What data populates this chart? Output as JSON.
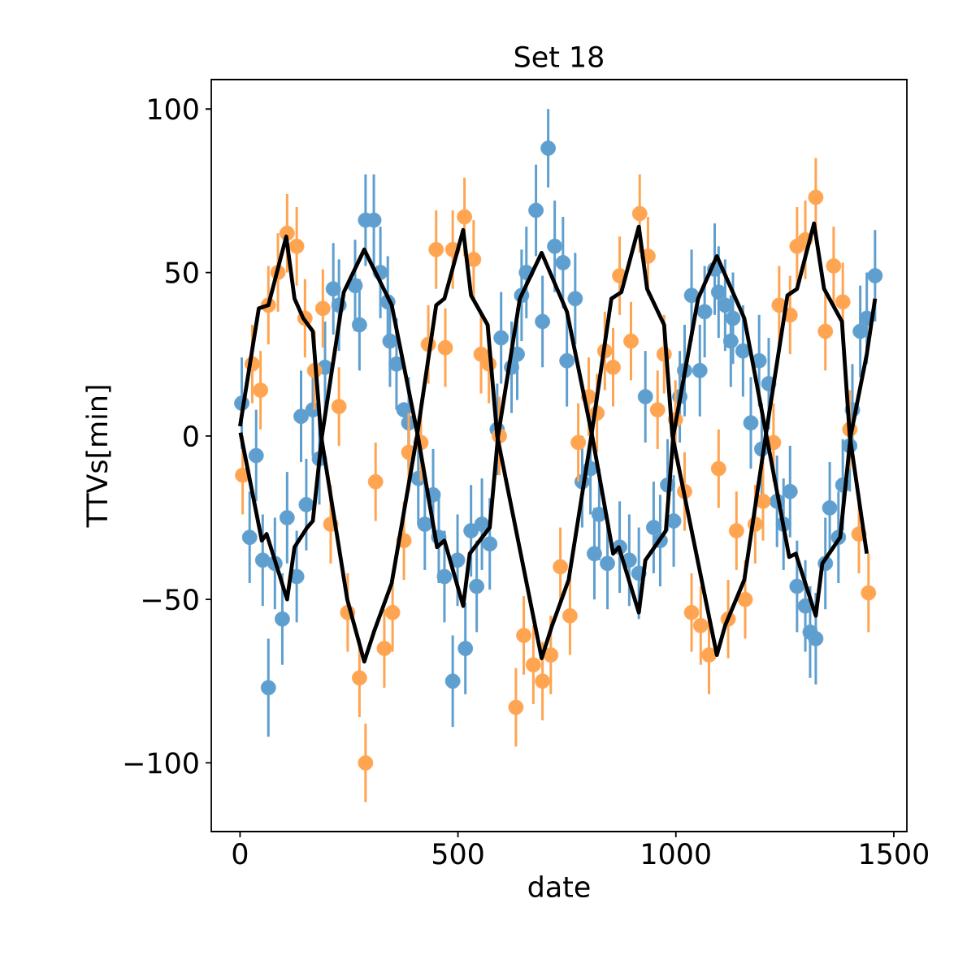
{
  "chart_data": {
    "type": "scatter",
    "title": "Set 18",
    "xlabel": "date",
    "ylabel": "TTVs[min]",
    "xlim": [
      -66,
      1530
    ],
    "ylim": [
      -121,
      109
    ],
    "xticks": [
      0,
      500,
      1000,
      1500
    ],
    "yticks": [
      {
        "value": -100,
        "label": "−100"
      },
      {
        "value": -50,
        "label": "−50"
      },
      0,
      50,
      100
    ],
    "marker": "circle",
    "series": [
      {
        "color": "#5f9fcf",
        "x": [
          4,
          22,
          37,
          52,
          65,
          80,
          97,
          108,
          130,
          140,
          152,
          167,
          182,
          195,
          214,
          227,
          264,
          274,
          288,
          307,
          322,
          339,
          344,
          359,
          376,
          387,
          409,
          424,
          443,
          456,
          469,
          488,
          499,
          517,
          530,
          543,
          555,
          573,
          590,
          599,
          623,
          636,
          646,
          657,
          679,
          694,
          707,
          722,
          741,
          750,
          769,
          785,
          804,
          813,
          824,
          843,
          871,
          893,
          915,
          930,
          949,
          964,
          981,
          995,
          1009,
          1020,
          1036,
          1055,
          1066,
          1089,
          1098,
          1113,
          1126,
          1131,
          1154,
          1172,
          1191,
          1197,
          1213,
          1232,
          1247,
          1262,
          1278,
          1297,
          1308,
          1321,
          1343,
          1353,
          1373,
          1383,
          1399,
          1405,
          1423,
          1438,
          1457
        ],
        "values": [
          10,
          -31,
          -6,
          -38,
          -77,
          -39,
          -56,
          -25,
          -43,
          6,
          -21,
          8,
          -7,
          21,
          45,
          40,
          46,
          34,
          66,
          66,
          50,
          41,
          29,
          22,
          8,
          4,
          -13,
          -27,
          -18,
          -31,
          -43,
          -75,
          -38,
          -65,
          -29,
          -46,
          -27,
          -33,
          2,
          30,
          21,
          25,
          43,
          50,
          69,
          35,
          88,
          58,
          53,
          23,
          42,
          -14,
          -10,
          -36,
          -24,
          -39,
          -34,
          -38,
          -42,
          12,
          -28,
          -32,
          -15,
          -26,
          12,
          20,
          43,
          20,
          38,
          51,
          44,
          40,
          29,
          36,
          26,
          4,
          23,
          -4,
          16,
          -20,
          -27,
          -17,
          -46,
          -52,
          -60,
          -62,
          -39,
          -22,
          -31,
          -15,
          -3,
          8,
          32,
          36,
          49
        ],
        "errors": [
          14,
          14,
          14,
          14,
          15,
          14,
          14,
          14,
          14,
          14,
          14,
          14,
          14,
          14,
          14,
          14,
          14,
          14,
          14,
          14,
          14,
          14,
          14,
          14,
          null,
          14,
          14,
          14,
          14,
          14,
          14,
          14,
          14,
          14,
          14,
          14,
          14,
          14,
          14,
          14,
          14,
          14,
          14,
          14,
          14,
          14,
          12,
          14,
          14,
          14,
          14,
          14,
          14,
          14,
          14,
          14,
          14,
          14,
          14,
          14,
          14,
          14,
          14,
          14,
          14,
          14,
          14,
          14,
          14,
          14,
          14,
          14,
          14,
          14,
          14,
          14,
          14,
          14,
          14,
          14,
          14,
          14,
          14,
          14,
          14,
          14,
          14,
          14,
          14,
          14,
          14,
          14,
          14,
          14,
          14
        ]
      },
      {
        "color": "#ffa552",
        "x": [
          6,
          28,
          47,
          65,
          87,
          108,
          130,
          149,
          171,
          190,
          208,
          227,
          247,
          274,
          288,
          311,
          331,
          350,
          376,
          387,
          415,
          432,
          450,
          471,
          488,
          515,
          536,
          553,
          571,
          595,
          633,
          651,
          673,
          694,
          713,
          735,
          757,
          776,
          800,
          819,
          837,
          856,
          871,
          897,
          917,
          936,
          958,
          973,
          999,
          1020,
          1036,
          1057,
          1076,
          1098,
          1120,
          1139,
          1159,
          1182,
          1200,
          1224,
          1237,
          1262,
          1278,
          1297,
          1321,
          1343,
          1362,
          1383,
          1399,
          1420,
          1442
        ],
        "values": [
          -12,
          22,
          14,
          40,
          50,
          62,
          58,
          36,
          20,
          39,
          -27,
          9,
          -54,
          -74,
          -100,
          -14,
          -65,
          -54,
          -32,
          -5,
          -2,
          28,
          57,
          27,
          57,
          67,
          54,
          25,
          22,
          0,
          -83,
          -61,
          -70,
          -75,
          -67,
          -40,
          -55,
          -2,
          12,
          7,
          26,
          21,
          49,
          29,
          68,
          55,
          8,
          25,
          5,
          -17,
          -54,
          -58,
          -67,
          -10,
          -56,
          -29,
          -50,
          -27,
          -20,
          -2,
          40,
          37,
          58,
          60,
          73,
          32,
          52,
          41,
          2,
          -30,
          -48
        ],
        "errors": [
          12,
          12,
          12,
          12,
          12,
          12,
          12,
          12,
          12,
          12,
          12,
          12,
          12,
          12,
          12,
          12,
          12,
          12,
          12,
          12,
          12,
          12,
          12,
          12,
          12,
          12,
          12,
          12,
          12,
          12,
          12,
          12,
          12,
          12,
          12,
          12,
          12,
          12,
          12,
          12,
          12,
          12,
          12,
          12,
          12,
          12,
          12,
          12,
          12,
          12,
          12,
          12,
          12,
          12,
          12,
          12,
          12,
          12,
          12,
          12,
          12,
          12,
          12,
          12,
          12,
          12,
          12,
          12,
          12,
          12,
          12
        ]
      },
      {
        "type": "line",
        "color": "#000000",
        "marker": "none",
        "line_style": "solid",
        "x": [
          0,
          43,
          65,
          106,
          125,
          145,
          167,
          186,
          246,
          285,
          307,
          348,
          406,
          450,
          469,
          512,
          530,
          568,
          590,
          692,
          716,
          754,
          806,
          852,
          875,
          915,
          934,
          973,
          992,
          1094,
          1113,
          1157,
          1206,
          1256,
          1278,
          1317,
          1340,
          1381,
          1399,
          1438
        ],
        "values": [
          3,
          39,
          40,
          61,
          42,
          36,
          32,
          0,
          -50,
          -69,
          -60,
          -45,
          0,
          40,
          42,
          63,
          43,
          34,
          0,
          -68,
          -58,
          -44,
          0,
          42,
          44,
          64,
          45,
          34,
          0,
          -67,
          -58,
          -44,
          0,
          43,
          45,
          65,
          45,
          35,
          0,
          -36
        ]
      },
      {
        "type": "line",
        "color": "#000000",
        "marker": "none",
        "line_style": "solid",
        "x": [
          1,
          50,
          61,
          108,
          125,
          154,
          167,
          188,
          238,
          285,
          348,
          408,
          452,
          469,
          512,
          527,
          573,
          592,
          642,
          692,
          750,
          808,
          856,
          869,
          915,
          930,
          977,
          994,
          1051,
          1094,
          1157,
          1208,
          1260,
          1275,
          1321,
          1336,
          1377,
          1401,
          1438,
          1457
        ],
        "values": [
          1,
          -32,
          -30,
          -50,
          -34,
          -28,
          -26,
          0,
          44,
          57,
          40,
          0,
          -34,
          -32,
          -52,
          -36,
          -28,
          0,
          42,
          56,
          38,
          0,
          -36,
          -34,
          -54,
          -38,
          -29,
          0,
          42,
          55,
          36,
          0,
          -37,
          -36,
          -55,
          -39,
          -31,
          0,
          25,
          42
        ]
      }
    ]
  }
}
